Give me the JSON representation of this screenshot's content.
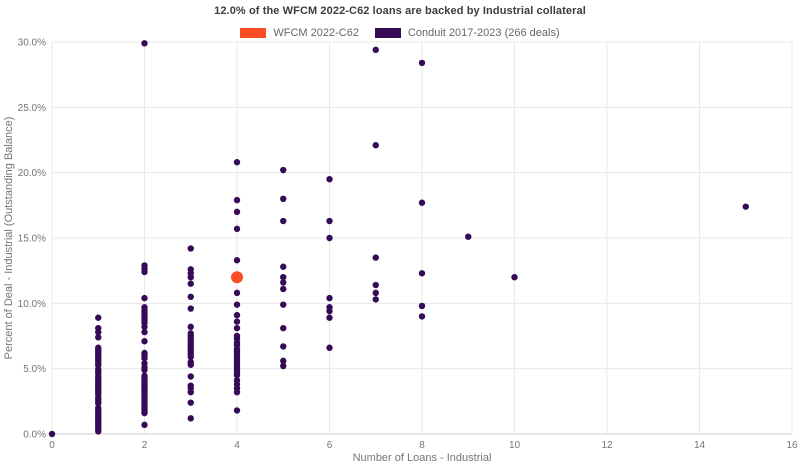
{
  "chart": {
    "title": "12.0% of the WFCM 2022-C62 loans are backed by Industrial collateral",
    "xlabel": "Number of Loans - Industrial",
    "ylabel": "Percent of Deal - Industrial (Outstanding Balance)"
  },
  "legend": {
    "items": [
      {
        "label": "WFCM 2022-C62",
        "color": "#FB4D23"
      },
      {
        "label": "Conduit 2017-2023 (266 deals)",
        "color": "#350B56"
      }
    ]
  },
  "colors": {
    "grid": "#e8e8e8",
    "axis_line": "#cccccc",
    "tick_text": "#757575"
  },
  "chart_data": {
    "type": "scatter",
    "title": "12.0% of the WFCM 2022-C62 loans are backed by Industrial collateral",
    "xlabel": "Number of Loans - Industrial",
    "ylabel": "Percent of Deal - Industrial (Outstanding Balance)",
    "xlim": [
      0,
      16
    ],
    "ylim": [
      0,
      30
    ],
    "grid": true,
    "legend_position": "top-center",
    "x_ticks": [
      {
        "value": 0,
        "label": "0"
      },
      {
        "value": 2,
        "label": "2"
      },
      {
        "value": 4,
        "label": "4"
      },
      {
        "value": 6,
        "label": "6"
      },
      {
        "value": 8,
        "label": "8"
      },
      {
        "value": 10,
        "label": "10"
      },
      {
        "value": 12,
        "label": "12"
      },
      {
        "value": 14,
        "label": "14"
      },
      {
        "value": 16,
        "label": "16"
      }
    ],
    "y_ticks": [
      {
        "value": 0,
        "label": "0.0%"
      },
      {
        "value": 5,
        "label": "5.0%"
      },
      {
        "value": 10,
        "label": "10.0%"
      },
      {
        "value": 15,
        "label": "15.0%"
      },
      {
        "value": 20,
        "label": "20.0%"
      },
      {
        "value": 25,
        "label": "25.0%"
      },
      {
        "value": 30,
        "label": "30.0%"
      }
    ],
    "series": [
      {
        "name": "Conduit 2017-2023 (266 deals)",
        "color": "#350B56",
        "marker_radius": 3.2,
        "points": [
          [
            0,
            0
          ],
          [
            1,
            0.2
          ],
          [
            1,
            0.35
          ],
          [
            1,
            0.5
          ],
          [
            1,
            0.65
          ],
          [
            1,
            0.8
          ],
          [
            1,
            0.95
          ],
          [
            1,
            1.1
          ],
          [
            1,
            1.25
          ],
          [
            1,
            1.4
          ],
          [
            1,
            1.55
          ],
          [
            1,
            1.7
          ],
          [
            1,
            1.85
          ],
          [
            1,
            2.0
          ],
          [
            1,
            2.35
          ],
          [
            1,
            2.5
          ],
          [
            1,
            2.65
          ],
          [
            1,
            2.8
          ],
          [
            1,
            3.05
          ],
          [
            1,
            3.2
          ],
          [
            1,
            3.35
          ],
          [
            1,
            3.5
          ],
          [
            1,
            3.65
          ],
          [
            1,
            3.8
          ],
          [
            1,
            3.95
          ],
          [
            1,
            4.1
          ],
          [
            1,
            4.25
          ],
          [
            1,
            4.4
          ],
          [
            1,
            4.65
          ],
          [
            1,
            4.8
          ],
          [
            1,
            4.95
          ],
          [
            1,
            5.25
          ],
          [
            1,
            5.4
          ],
          [
            1,
            5.55
          ],
          [
            1,
            5.7
          ],
          [
            1,
            5.85
          ],
          [
            1,
            6.0
          ],
          [
            1,
            6.15
          ],
          [
            1,
            6.3
          ],
          [
            1,
            6.45
          ],
          [
            1,
            6.6
          ],
          [
            1,
            7.4
          ],
          [
            1,
            7.8
          ],
          [
            1,
            8.1
          ],
          [
            1,
            8.9
          ],
          [
            2,
            0.7
          ],
          [
            2,
            1.6
          ],
          [
            2,
            1.75
          ],
          [
            2,
            1.9
          ],
          [
            2,
            2.05
          ],
          [
            2,
            2.2
          ],
          [
            2,
            2.35
          ],
          [
            2,
            2.5
          ],
          [
            2,
            2.65
          ],
          [
            2,
            2.8
          ],
          [
            2,
            2.95
          ],
          [
            2,
            3.1
          ],
          [
            2,
            3.25
          ],
          [
            2,
            3.4
          ],
          [
            2,
            3.55
          ],
          [
            2,
            3.7
          ],
          [
            2,
            3.85
          ],
          [
            2,
            4.0
          ],
          [
            2,
            4.15
          ],
          [
            2,
            4.3
          ],
          [
            2,
            4.45
          ],
          [
            2,
            4.9
          ],
          [
            2,
            5.1
          ],
          [
            2,
            5.4
          ],
          [
            2,
            5.8
          ],
          [
            2,
            6.0
          ],
          [
            2,
            6.2
          ],
          [
            2,
            7.1
          ],
          [
            2,
            7.8
          ],
          [
            2,
            8.2
          ],
          [
            2,
            8.5
          ],
          [
            2,
            8.7
          ],
          [
            2,
            8.9
          ],
          [
            2,
            9.1
          ],
          [
            2,
            9.3
          ],
          [
            2,
            9.5
          ],
          [
            2,
            9.7
          ],
          [
            2,
            10.4
          ],
          [
            2,
            12.4
          ],
          [
            2,
            12.65
          ],
          [
            2,
            12.9
          ],
          [
            2,
            29.9
          ],
          [
            3,
            1.2
          ],
          [
            3,
            2.4
          ],
          [
            3,
            3.2
          ],
          [
            3,
            3.5
          ],
          [
            3,
            3.7
          ],
          [
            3,
            4.4
          ],
          [
            3,
            5.3
          ],
          [
            3,
            5.5
          ],
          [
            3,
            5.9
          ],
          [
            3,
            6.1
          ],
          [
            3,
            6.3
          ],
          [
            3,
            6.5
          ],
          [
            3,
            6.7
          ],
          [
            3,
            6.9
          ],
          [
            3,
            7.1
          ],
          [
            3,
            7.3
          ],
          [
            3,
            7.5
          ],
          [
            3,
            7.7
          ],
          [
            3,
            8.2
          ],
          [
            3,
            9.6
          ],
          [
            3,
            10.5
          ],
          [
            3,
            11.5
          ],
          [
            3,
            12.0
          ],
          [
            3,
            12.3
          ],
          [
            3,
            12.6
          ],
          [
            3,
            14.2
          ],
          [
            4,
            1.8
          ],
          [
            4,
            3.2
          ],
          [
            4,
            3.5
          ],
          [
            4,
            3.8
          ],
          [
            4,
            4.1
          ],
          [
            4,
            4.5
          ],
          [
            4,
            4.7
          ],
          [
            4,
            4.9
          ],
          [
            4,
            5.1
          ],
          [
            4,
            5.3
          ],
          [
            4,
            5.5
          ],
          [
            4,
            5.7
          ],
          [
            4,
            5.9
          ],
          [
            4,
            6.1
          ],
          [
            4,
            6.3
          ],
          [
            4,
            6.5
          ],
          [
            4,
            6.8
          ],
          [
            4,
            7.0
          ],
          [
            4,
            7.3
          ],
          [
            4,
            7.5
          ],
          [
            4,
            8.1
          ],
          [
            4,
            8.6
          ],
          [
            4,
            9.1
          ],
          [
            4,
            9.9
          ],
          [
            4,
            10.8
          ],
          [
            4,
            13.3
          ],
          [
            4,
            15.7
          ],
          [
            4,
            17.0
          ],
          [
            4,
            17.9
          ],
          [
            4,
            20.8
          ],
          [
            5,
            5.2
          ],
          [
            5,
            5.6
          ],
          [
            5,
            6.7
          ],
          [
            5,
            8.1
          ],
          [
            5,
            9.9
          ],
          [
            5,
            11.1
          ],
          [
            5,
            11.6
          ],
          [
            5,
            12.0
          ],
          [
            5,
            12.8
          ],
          [
            5,
            16.3
          ],
          [
            5,
            18.0
          ],
          [
            5,
            20.2
          ],
          [
            6,
            6.6
          ],
          [
            6,
            8.9
          ],
          [
            6,
            9.4
          ],
          [
            6,
            9.7
          ],
          [
            6,
            10.4
          ],
          [
            6,
            15.0
          ],
          [
            6,
            16.3
          ],
          [
            6,
            19.5
          ],
          [
            7,
            10.3
          ],
          [
            7,
            10.8
          ],
          [
            7,
            11.4
          ],
          [
            7,
            13.5
          ],
          [
            7,
            22.1
          ],
          [
            7,
            29.4
          ],
          [
            8,
            9.0
          ],
          [
            8,
            9.8
          ],
          [
            8,
            12.3
          ],
          [
            8,
            17.7
          ],
          [
            8,
            28.4
          ],
          [
            9,
            15.1
          ],
          [
            10,
            12.0
          ],
          [
            15,
            17.4
          ]
        ]
      },
      {
        "name": "WFCM 2022-C62",
        "color": "#FB4D23",
        "marker_radius": 6,
        "points": [
          [
            4,
            12.0
          ]
        ]
      }
    ]
  }
}
